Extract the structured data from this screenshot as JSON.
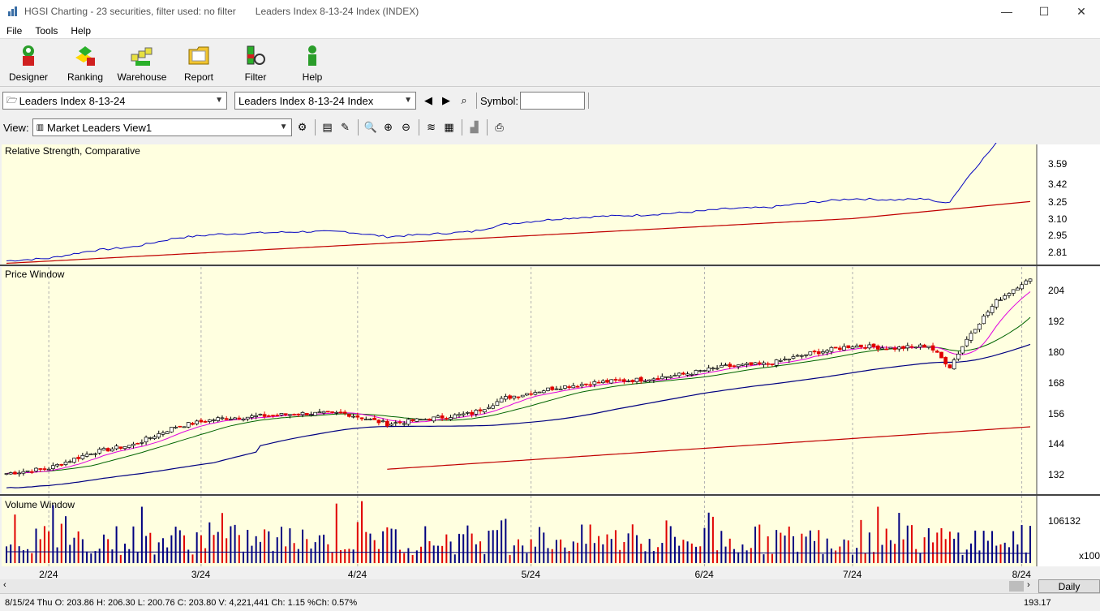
{
  "window": {
    "title": "HGSI Charting - 23 securities, filter used: no filter",
    "subtitle": "Leaders Index 8-13-24 Index (INDEX)",
    "minimize": "—",
    "maximize": "☐",
    "close": "✕"
  },
  "menu": [
    "File",
    "Tools",
    "Help"
  ],
  "toolbar": [
    {
      "label": "Designer",
      "icon": "designer-icon"
    },
    {
      "label": "Ranking",
      "icon": "ranking-icon"
    },
    {
      "label": "Warehouse",
      "icon": "warehouse-icon"
    },
    {
      "label": "Report",
      "icon": "report-icon"
    },
    {
      "label": "Filter",
      "icon": "filter-icon"
    },
    {
      "label": "Help",
      "icon": "help-icon"
    }
  ],
  "selectors": {
    "list": "Leaders Index 8-13-24",
    "index": "Leaders Index 8-13-24 Index",
    "symbol_label": "Symbol:",
    "symbol_value": ""
  },
  "view": {
    "label": "View:",
    "selected": "Market Leaders View1"
  },
  "panels": {
    "rs_title": "Relative Strength, Comparative",
    "price_title": "Price Window",
    "volume_title": "Volume Window",
    "rs_ticks": [
      "3.59",
      "3.42",
      "3.25",
      "3.10",
      "2.95",
      "2.81"
    ],
    "price_ticks": [
      "204",
      "192",
      "180",
      "168",
      "156",
      "144",
      "132"
    ],
    "volume_ticks": [
      "106132"
    ],
    "volume_scale": "x100"
  },
  "chart_data": {
    "type": "candlestick",
    "x_labels": [
      "2/24",
      "3/24",
      "4/24",
      "5/24",
      "6/24",
      "7/24",
      "8/24"
    ],
    "rs_range": [
      2.78,
      3.76
    ],
    "price_range": [
      124,
      208
    ],
    "price_anchor_points": [
      {
        "i": 0,
        "c": 131
      },
      {
        "i": 10,
        "c": 133
      },
      {
        "i": 20,
        "c": 139
      },
      {
        "i": 30,
        "c": 142
      },
      {
        "i": 40,
        "c": 149
      },
      {
        "i": 50,
        "c": 152
      },
      {
        "i": 60,
        "c": 153
      },
      {
        "i": 70,
        "c": 154
      },
      {
        "i": 80,
        "c": 154
      },
      {
        "i": 90,
        "c": 150
      },
      {
        "i": 100,
        "c": 152
      },
      {
        "i": 110,
        "c": 154
      },
      {
        "i": 118,
        "c": 160
      },
      {
        "i": 130,
        "c": 164
      },
      {
        "i": 140,
        "c": 166
      },
      {
        "i": 150,
        "c": 167
      },
      {
        "i": 160,
        "c": 169
      },
      {
        "i": 170,
        "c": 172
      },
      {
        "i": 180,
        "c": 173
      },
      {
        "i": 190,
        "c": 177
      },
      {
        "i": 200,
        "c": 180
      },
      {
        "i": 210,
        "c": 179
      },
      {
        "i": 218,
        "c": 180
      },
      {
        "i": 223,
        "c": 172
      },
      {
        "i": 228,
        "c": 185
      },
      {
        "i": 234,
        "c": 197
      },
      {
        "i": 240,
        "c": 204
      },
      {
        "i": 242,
        "c": 205
      }
    ],
    "status_line": "8/15/24 Thu O: 203.86 H: 206.30 L: 200.76 C: 203.80 V: 4,221,441 Ch: 1.15 %Ch: 0.57%",
    "last_value": "193.17",
    "period": "Daily"
  },
  "colors": {
    "panel_bg": "#ffffe0",
    "up": "#ffffff",
    "down": "#e00000",
    "ma_magenta": "#e000e0",
    "ma_green": "#006400",
    "ma_blue": "#000080",
    "ma_red": "#c00000"
  }
}
